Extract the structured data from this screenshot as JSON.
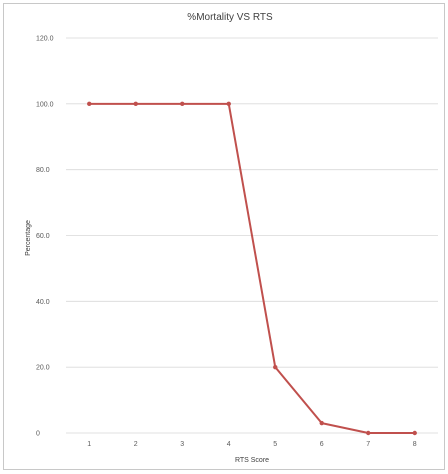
{
  "chart_data": {
    "type": "line",
    "title": "%Mortality VS RTS",
    "xlabel": "RTS Score",
    "ylabel": "Percentage",
    "x": [
      1,
      2,
      3,
      4,
      5,
      6,
      7,
      8
    ],
    "x_tick_labels": [
      "1",
      "2",
      "3",
      "4",
      "5",
      "6",
      "7",
      "8"
    ],
    "y_tick_labels": [
      "0",
      "20.0",
      "40.0",
      "60.0",
      "80.0",
      "100.0",
      "120.0"
    ],
    "y_ticks": [
      0,
      20,
      40,
      60,
      80,
      100,
      120
    ],
    "ylim": [
      0,
      120
    ],
    "series": [
      {
        "values": [
          100,
          100,
          100,
          100,
          20,
          3,
          0,
          0
        ]
      }
    ],
    "grid": true,
    "legend": "none",
    "line_color": "#c0504d",
    "grid_color": "#d9d9d9"
  }
}
